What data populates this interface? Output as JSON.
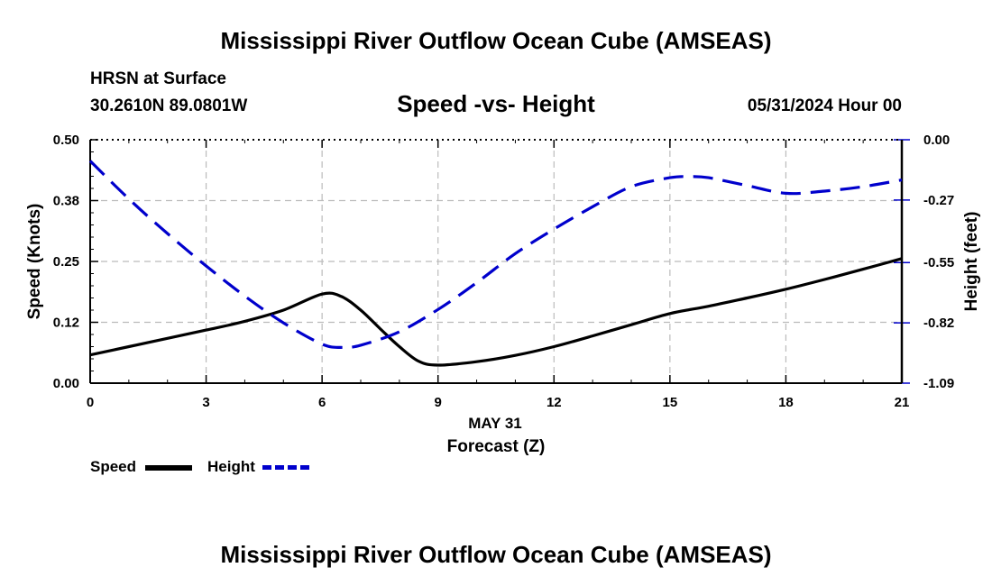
{
  "header": {
    "title": "Mississippi River Outflow Ocean Cube (AMSEAS)",
    "station": "HRSN at Surface",
    "coords": "30.2610N  89.0801W",
    "subtitle": "Speed -vs- Height",
    "datetime": "05/31/2024 Hour 00",
    "footer_title": "Mississippi River Outflow Ocean Cube (AMSEAS)"
  },
  "legend": {
    "speed_label": "Speed",
    "height_label": "Height"
  },
  "colors": {
    "speed": "#000000",
    "height": "#0000cc",
    "grid": "#bbbbbb"
  },
  "chart_data": {
    "type": "line",
    "title": "Speed -vs- Height",
    "xlabel": "Forecast (Z)",
    "xlabel_date": "MAY 31",
    "ylabel_left": "Speed (Knots)",
    "ylabel_right": "Height (feet)",
    "xlim": [
      0,
      21
    ],
    "ylim_left": [
      0,
      0.5
    ],
    "ylim_right": [
      -1.09,
      0.0
    ],
    "x_ticks": [
      0,
      3,
      6,
      9,
      12,
      15,
      18,
      21
    ],
    "x_tick_labels": [
      "0",
      "3",
      "6",
      "9",
      "12",
      "15",
      "18",
      "21"
    ],
    "y_left_ticks": [
      0,
      0.125,
      0.25,
      0.375,
      0.5
    ],
    "y_left_tick_labels": [
      "0.00",
      "0.12",
      "0.25",
      "0.38",
      "0.50"
    ],
    "y_right_ticks": [
      -1.09,
      -0.82,
      -0.55,
      -0.27,
      0.0
    ],
    "y_right_tick_labels": [
      "-1.09",
      "-0.82",
      "-0.55",
      "-0.27",
      "0.00"
    ],
    "grid": true,
    "series": [
      {
        "name": "Speed",
        "axis": "left",
        "style": "solid",
        "x": [
          0,
          1,
          2,
          3,
          4,
          5,
          6,
          6.5,
          7,
          7.5,
          8,
          8.5,
          9,
          10,
          11,
          12,
          13,
          14,
          15,
          16,
          17,
          18,
          19,
          20,
          21
        ],
        "values": [
          0.058,
          0.075,
          0.092,
          0.109,
          0.127,
          0.15,
          0.183,
          0.178,
          0.15,
          0.112,
          0.075,
          0.045,
          0.037,
          0.044,
          0.057,
          0.075,
          0.097,
          0.12,
          0.143,
          0.158,
          0.175,
          0.193,
          0.213,
          0.234,
          0.256
        ]
      },
      {
        "name": "Height",
        "axis": "right",
        "style": "dashed",
        "x": [
          0,
          1,
          2,
          3,
          4,
          5,
          6,
          6.5,
          7,
          8,
          9,
          10,
          11,
          12,
          13,
          14,
          15,
          15.5,
          16,
          17,
          18,
          19,
          20,
          21
        ],
        "values": [
          -0.095,
          -0.265,
          -0.42,
          -0.565,
          -0.7,
          -0.82,
          -0.915,
          -0.93,
          -0.92,
          -0.86,
          -0.76,
          -0.64,
          -0.51,
          -0.4,
          -0.3,
          -0.21,
          -0.17,
          -0.165,
          -0.17,
          -0.205,
          -0.24,
          -0.23,
          -0.21,
          -0.18
        ]
      }
    ]
  }
}
